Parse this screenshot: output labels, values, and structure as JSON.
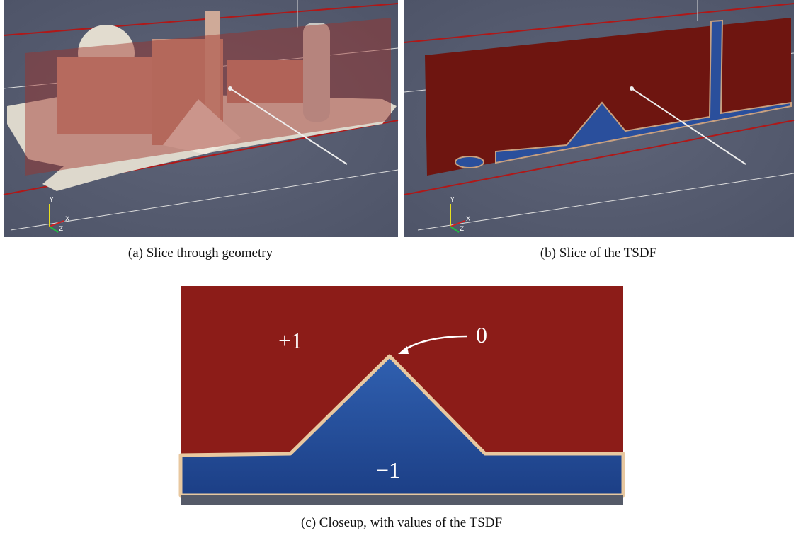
{
  "figures": [
    {
      "caption": "(a) Slice through geometry",
      "axes": [
        "Y",
        "X",
        "Z"
      ]
    },
    {
      "caption": "(b) Slice of the TSDF",
      "axes": [
        "Y",
        "X",
        "Z"
      ]
    },
    {
      "caption": "(c) Closeup, with values of the TSDF",
      "labels": [
        "+1",
        "0",
        "−1"
      ]
    }
  ]
}
